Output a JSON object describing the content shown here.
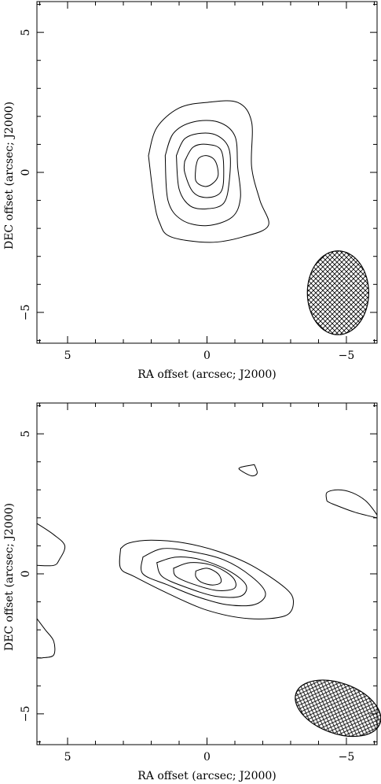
{
  "chart_data": [
    {
      "type": "contour",
      "xlabel": "RA offset (arcsec; J2000)",
      "ylabel": "DEC offset (arcsec; J2000)",
      "xlim": [
        6.1,
        -6.1
      ],
      "ylim": [
        -6.1,
        6.1
      ],
      "x_ticks": [
        {
          "value": 5,
          "label": "5"
        },
        {
          "value": 0,
          "label": "0"
        },
        {
          "value": -5,
          "label": "−5"
        }
      ],
      "y_ticks": [
        {
          "value": 5,
          "label": "5"
        },
        {
          "value": 0,
          "label": "0"
        },
        {
          "value": -5,
          "label": "−5"
        }
      ],
      "beam": {
        "x": -4.7,
        "y": -4.3,
        "major": 1.5,
        "minor": 1.1,
        "pa": 0
      },
      "contours": [
        {
          "points": [
            [
              2.1,
              0.6
            ],
            [
              1.8,
              1.6
            ],
            [
              1.0,
              2.3
            ],
            [
              0.0,
              2.5
            ],
            [
              -1.1,
              2.5
            ],
            [
              -1.6,
              1.8
            ],
            [
              -1.6,
              0.2
            ],
            [
              -1.9,
              -1.0
            ],
            [
              -2.2,
              -1.9
            ],
            [
              -1.3,
              -2.3
            ],
            [
              -0.1,
              -2.5
            ],
            [
              1.3,
              -2.3
            ],
            [
              1.7,
              -1.8
            ],
            [
              1.9,
              -1.0
            ],
            [
              2.1,
              0.6
            ]
          ]
        },
        {
          "points": [
            [
              1.5,
              0.6
            ],
            [
              1.2,
              1.4
            ],
            [
              0.5,
              1.8
            ],
            [
              -0.4,
              1.8
            ],
            [
              -1.0,
              1.3
            ],
            [
              -1.1,
              0.2
            ],
            [
              -1.2,
              -0.9
            ],
            [
              -0.9,
              -1.6
            ],
            [
              0.0,
              -1.9
            ],
            [
              0.9,
              -1.7
            ],
            [
              1.4,
              -1.0
            ],
            [
              1.5,
              0.6
            ]
          ]
        },
        {
          "points": [
            [
              1.1,
              0.6
            ],
            [
              0.8,
              1.2
            ],
            [
              0.2,
              1.4
            ],
            [
              -0.4,
              1.3
            ],
            [
              -0.8,
              0.8
            ],
            [
              -0.8,
              -0.3
            ],
            [
              -0.6,
              -1.1
            ],
            [
              0.0,
              -1.3
            ],
            [
              0.6,
              -1.2
            ],
            [
              1.0,
              -0.6
            ],
            [
              1.1,
              0.6
            ]
          ]
        },
        {
          "points": [
            [
              0.8,
              0.4
            ],
            [
              0.5,
              0.9
            ],
            [
              0.0,
              1.0
            ],
            [
              -0.5,
              0.8
            ],
            [
              -0.6,
              0.0
            ],
            [
              -0.5,
              -0.7
            ],
            [
              0.0,
              -0.9
            ],
            [
              0.5,
              -0.7
            ],
            [
              0.8,
              0.0
            ],
            [
              0.8,
              0.4
            ]
          ]
        },
        {
          "points": [
            [
              0.4,
              0.2
            ],
            [
              0.3,
              0.5
            ],
            [
              0.0,
              0.6
            ],
            [
              -0.3,
              0.4
            ],
            [
              -0.4,
              -0.1
            ],
            [
              -0.2,
              -0.4
            ],
            [
              0.1,
              -0.5
            ],
            [
              0.4,
              -0.3
            ],
            [
              0.4,
              0.2
            ]
          ]
        }
      ]
    },
    {
      "type": "contour",
      "xlabel": "RA offset (arcsec; J2000)",
      "ylabel": "DEC offset (arcsec; J2000)",
      "xlim": [
        6.1,
        -6.1
      ],
      "ylim": [
        -6.1,
        6.1
      ],
      "x_ticks": [
        {
          "value": 5,
          "label": "5"
        },
        {
          "value": 0,
          "label": "0"
        },
        {
          "value": -5,
          "label": "−5"
        }
      ],
      "y_ticks": [
        {
          "value": 5,
          "label": "5"
        },
        {
          "value": 0,
          "label": "0"
        },
        {
          "value": -5,
          "label": "−5"
        }
      ],
      "beam": {
        "x": -4.7,
        "y": -4.8,
        "major": 1.6,
        "minor": 0.9,
        "pa": 20
      },
      "contours": [
        {
          "points": [
            [
              3.1,
              0.9
            ],
            [
              2.8,
              1.1
            ],
            [
              2.0,
              1.2
            ],
            [
              0.8,
              1.1
            ],
            [
              -0.4,
              0.8
            ],
            [
              -1.6,
              0.3
            ],
            [
              -2.8,
              -0.5
            ],
            [
              -3.1,
              -1.0
            ],
            [
              -2.8,
              -1.5
            ],
            [
              -1.5,
              -1.6
            ],
            [
              0.0,
              -1.3
            ],
            [
              1.4,
              -0.7
            ],
            [
              2.6,
              -0.1
            ],
            [
              3.1,
              0.2
            ],
            [
              3.1,
              0.9
            ]
          ]
        },
        {
          "points": [
            [
              2.3,
              0.6
            ],
            [
              1.6,
              0.9
            ],
            [
              0.6,
              0.8
            ],
            [
              -0.6,
              0.5
            ],
            [
              -1.6,
              -0.1
            ],
            [
              -2.1,
              -0.7
            ],
            [
              -1.7,
              -1.1
            ],
            [
              -0.7,
              -1.1
            ],
            [
              0.4,
              -0.8
            ],
            [
              1.4,
              -0.4
            ],
            [
              2.3,
              0.0
            ],
            [
              2.3,
              0.6
            ]
          ]
        },
        {
          "points": [
            [
              1.8,
              0.4
            ],
            [
              1.1,
              0.6
            ],
            [
              0.2,
              0.5
            ],
            [
              -0.8,
              0.1
            ],
            [
              -1.4,
              -0.4
            ],
            [
              -1.2,
              -0.8
            ],
            [
              -0.3,
              -0.8
            ],
            [
              0.7,
              -0.5
            ],
            [
              1.6,
              -0.1
            ],
            [
              1.8,
              0.4
            ]
          ]
        },
        {
          "points": [
            [
              1.2,
              0.2
            ],
            [
              0.6,
              0.4
            ],
            [
              -0.2,
              0.3
            ],
            [
              -0.9,
              -0.1
            ],
            [
              -1.0,
              -0.5
            ],
            [
              -0.4,
              -0.6
            ],
            [
              0.4,
              -0.4
            ],
            [
              1.1,
              -0.1
            ],
            [
              1.2,
              0.2
            ]
          ]
        },
        {
          "points": [
            [
              0.4,
              0.1
            ],
            [
              0.0,
              0.2
            ],
            [
              -0.4,
              0.0
            ],
            [
              -0.5,
              -0.3
            ],
            [
              -0.2,
              -0.4
            ],
            [
              0.2,
              -0.3
            ],
            [
              0.4,
              -0.1
            ],
            [
              0.4,
              0.1
            ]
          ]
        },
        {
          "points": [
            [
              -1.7,
              3.9
            ],
            [
              -1.8,
              3.6
            ],
            [
              -1.6,
              3.5
            ],
            [
              -1.2,
              3.7
            ],
            [
              -1.2,
              3.8
            ],
            [
              -1.7,
              3.9
            ]
          ]
        },
        {
          "points": [
            [
              -4.3,
              2.6
            ],
            [
              -4.5,
              2.5
            ],
            [
              -5.3,
              2.2
            ],
            [
              -6.1,
              2.0
            ]
          ],
          "open": true
        },
        {
          "points": [
            [
              -6.1,
              2.0
            ],
            [
              -6.1,
              2.1
            ],
            [
              -5.7,
              2.6
            ],
            [
              -5.2,
              2.9
            ],
            [
              -4.7,
              3.0
            ],
            [
              -4.3,
              2.9
            ],
            [
              -4.3,
              2.6
            ]
          ],
          "open": true
        },
        {
          "points": [
            [
              6.1,
              1.8
            ],
            [
              5.5,
              1.4
            ],
            [
              5.1,
              1.0
            ],
            [
              5.3,
              0.5
            ],
            [
              5.5,
              0.3
            ],
            [
              6.1,
              0.3
            ]
          ],
          "open": true
        },
        {
          "points": [
            [
              6.1,
              -1.6
            ],
            [
              5.8,
              -2.0
            ],
            [
              5.5,
              -2.4
            ],
            [
              5.5,
              -2.9
            ],
            [
              5.9,
              -3.0
            ],
            [
              6.1,
              -3.0
            ]
          ],
          "open": true
        }
      ]
    }
  ]
}
